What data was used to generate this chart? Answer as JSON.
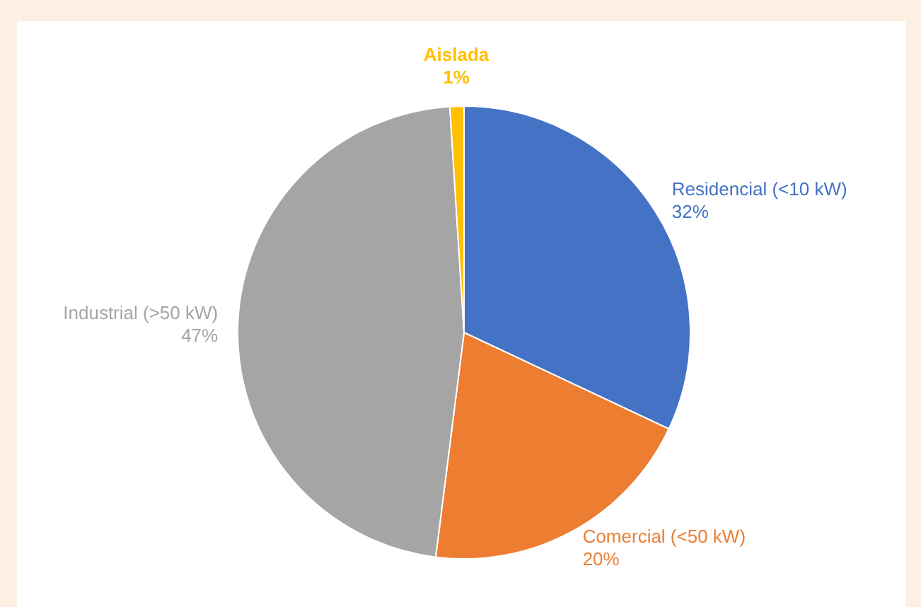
{
  "chart_data": {
    "type": "pie",
    "categories": [
      "Residencial (<10 kW)",
      "Comercial (<50 kW)",
      "Industrial (>50 kW)",
      "Aislada"
    ],
    "values": [
      32,
      20,
      47,
      1
    ],
    "colors": [
      "#4472c4",
      "#ed7d31",
      "#a5a5a5",
      "#ffc000"
    ],
    "value_labels": [
      "32%",
      "20%",
      "47%",
      "1%"
    ]
  }
}
